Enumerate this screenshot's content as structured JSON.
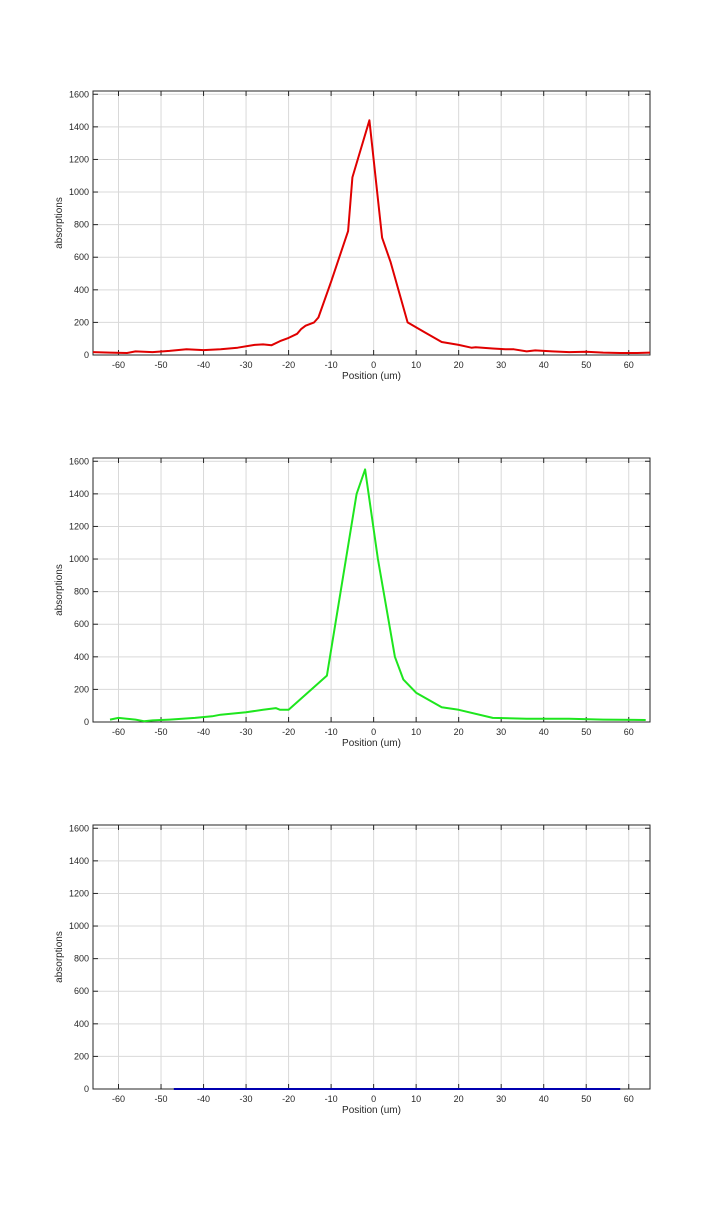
{
  "chart_data": [
    {
      "type": "line",
      "color": "#e00000",
      "xlabel": "Position (um)",
      "ylabel": "absorptions",
      "xlim": [
        -66,
        65
      ],
      "ylim": [
        0,
        1620
      ],
      "grid": true,
      "xticks": [
        -60,
        -50,
        -40,
        -30,
        -20,
        -10,
        0,
        10,
        20,
        30,
        40,
        50,
        60
      ],
      "xtick_labels": [
        "-60",
        "-50",
        "-40",
        "-30",
        "-20",
        "-10",
        "0",
        "10",
        "20",
        "30",
        "40",
        "50",
        "60"
      ],
      "yticks": [
        0,
        200,
        400,
        600,
        800,
        1000,
        1200,
        1400,
        1600
      ],
      "ytick_labels": [
        "0",
        "200",
        "400",
        "600",
        "800",
        "1000",
        "1200",
        "1400",
        "1600"
      ],
      "x": [
        -66,
        -62,
        -58,
        -56,
        -52,
        -48,
        -44,
        -40,
        -36,
        -32,
        -28,
        -26,
        -24,
        -22,
        -20,
        -18,
        -17,
        -16,
        -14,
        -13,
        -10,
        -6,
        -5,
        -1,
        2,
        4,
        8,
        12,
        16,
        20,
        23,
        24,
        28,
        31,
        33,
        36,
        38,
        42,
        46,
        50,
        54,
        58,
        62,
        65
      ],
      "y": [
        18,
        15,
        12,
        22,
        18,
        25,
        35,
        30,
        35,
        45,
        62,
        65,
        60,
        85,
        105,
        130,
        160,
        180,
        200,
        230,
        450,
        760,
        1090,
        1440,
        720,
        570,
        200,
        140,
        80,
        62,
        45,
        48,
        40,
        35,
        35,
        22,
        28,
        22,
        18,
        20,
        15,
        12,
        12,
        15
      ]
    },
    {
      "type": "line",
      "color": "#1ee61e",
      "xlabel": "Position (um)",
      "ylabel": "absorptions",
      "xlim": [
        -66,
        65
      ],
      "ylim": [
        0,
        1620
      ],
      "grid": true,
      "xticks": [
        -60,
        -50,
        -40,
        -30,
        -20,
        -10,
        0,
        10,
        20,
        30,
        40,
        50,
        60
      ],
      "xtick_labels": [
        "-60",
        "-50",
        "-40",
        "-30",
        "-20",
        "-10",
        "0",
        "10",
        "20",
        "30",
        "40",
        "50",
        "60"
      ],
      "yticks": [
        0,
        200,
        400,
        600,
        800,
        1000,
        1200,
        1400,
        1600
      ],
      "ytick_labels": [
        "0",
        "200",
        "400",
        "600",
        "800",
        "1000",
        "1200",
        "1400",
        "1600"
      ],
      "x": [
        -62,
        -60,
        -56,
        -54,
        -52,
        -48,
        -42,
        -38,
        -36,
        -30,
        -26,
        -23,
        -22,
        -20,
        -11,
        -4,
        -2,
        1,
        5,
        7,
        10,
        16,
        20,
        28,
        36,
        46,
        54,
        64
      ],
      "y": [
        15,
        25,
        15,
        5,
        10,
        15,
        25,
        35,
        45,
        60,
        75,
        85,
        75,
        75,
        285,
        1400,
        1550,
        1000,
        400,
        260,
        180,
        90,
        75,
        25,
        20,
        20,
        15,
        12
      ]
    },
    {
      "type": "line",
      "color": "#0000b0",
      "xlabel": "Position (um)",
      "ylabel": "absorptions",
      "xlim": [
        -66,
        65
      ],
      "ylim": [
        0,
        1620
      ],
      "grid": true,
      "xticks": [
        -60,
        -50,
        -40,
        -30,
        -20,
        -10,
        0,
        10,
        20,
        30,
        40,
        50,
        60
      ],
      "xtick_labels": [
        "-60",
        "-50",
        "-40",
        "-30",
        "-20",
        "-10",
        "0",
        "10",
        "20",
        "30",
        "40",
        "50",
        "60"
      ],
      "yticks": [
        0,
        200,
        400,
        600,
        800,
        1000,
        1200,
        1400,
        1600
      ],
      "ytick_labels": [
        "0",
        "200",
        "400",
        "600",
        "800",
        "1000",
        "1200",
        "1400",
        "1600"
      ],
      "x": [
        -47,
        58
      ],
      "y": [
        0,
        0
      ]
    }
  ]
}
